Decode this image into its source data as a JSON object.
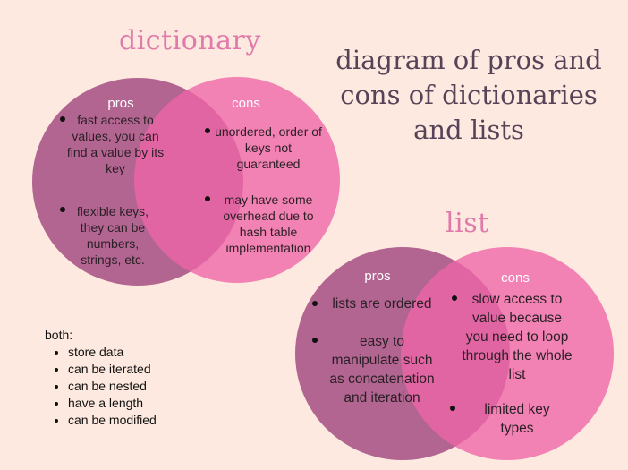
{
  "main_title": "diagram of pros and cons of dictionaries and lists",
  "dictionary": {
    "title": "dictionary",
    "pros_label": "pros",
    "cons_label": "cons",
    "pros": [
      "fast access to values, you can find a value by its key",
      "flexible keys, they can be numbers, strings, etc."
    ],
    "cons": [
      "unordered, order of keys not guaranteed",
      "may have some overhead due to hash table implementation"
    ]
  },
  "list": {
    "title": "list",
    "pros_label": "pros",
    "cons_label": "cons",
    "pros": [
      "lists are ordered",
      "easy to manipulate such as concatenation and iteration"
    ],
    "cons": [
      "slow access to value because you need to loop through the whole list",
      "limited key types"
    ]
  },
  "both": {
    "label": "both:",
    "items": [
      "store data",
      "can be iterated",
      "can be nested",
      "have a length",
      "can be modified"
    ]
  },
  "colors": {
    "background": "#fde9df",
    "pros_circle": "#a34d82",
    "cons_circle": "#f065a8",
    "title_pink": "#e07aaa",
    "title_dark": "#574358"
  }
}
